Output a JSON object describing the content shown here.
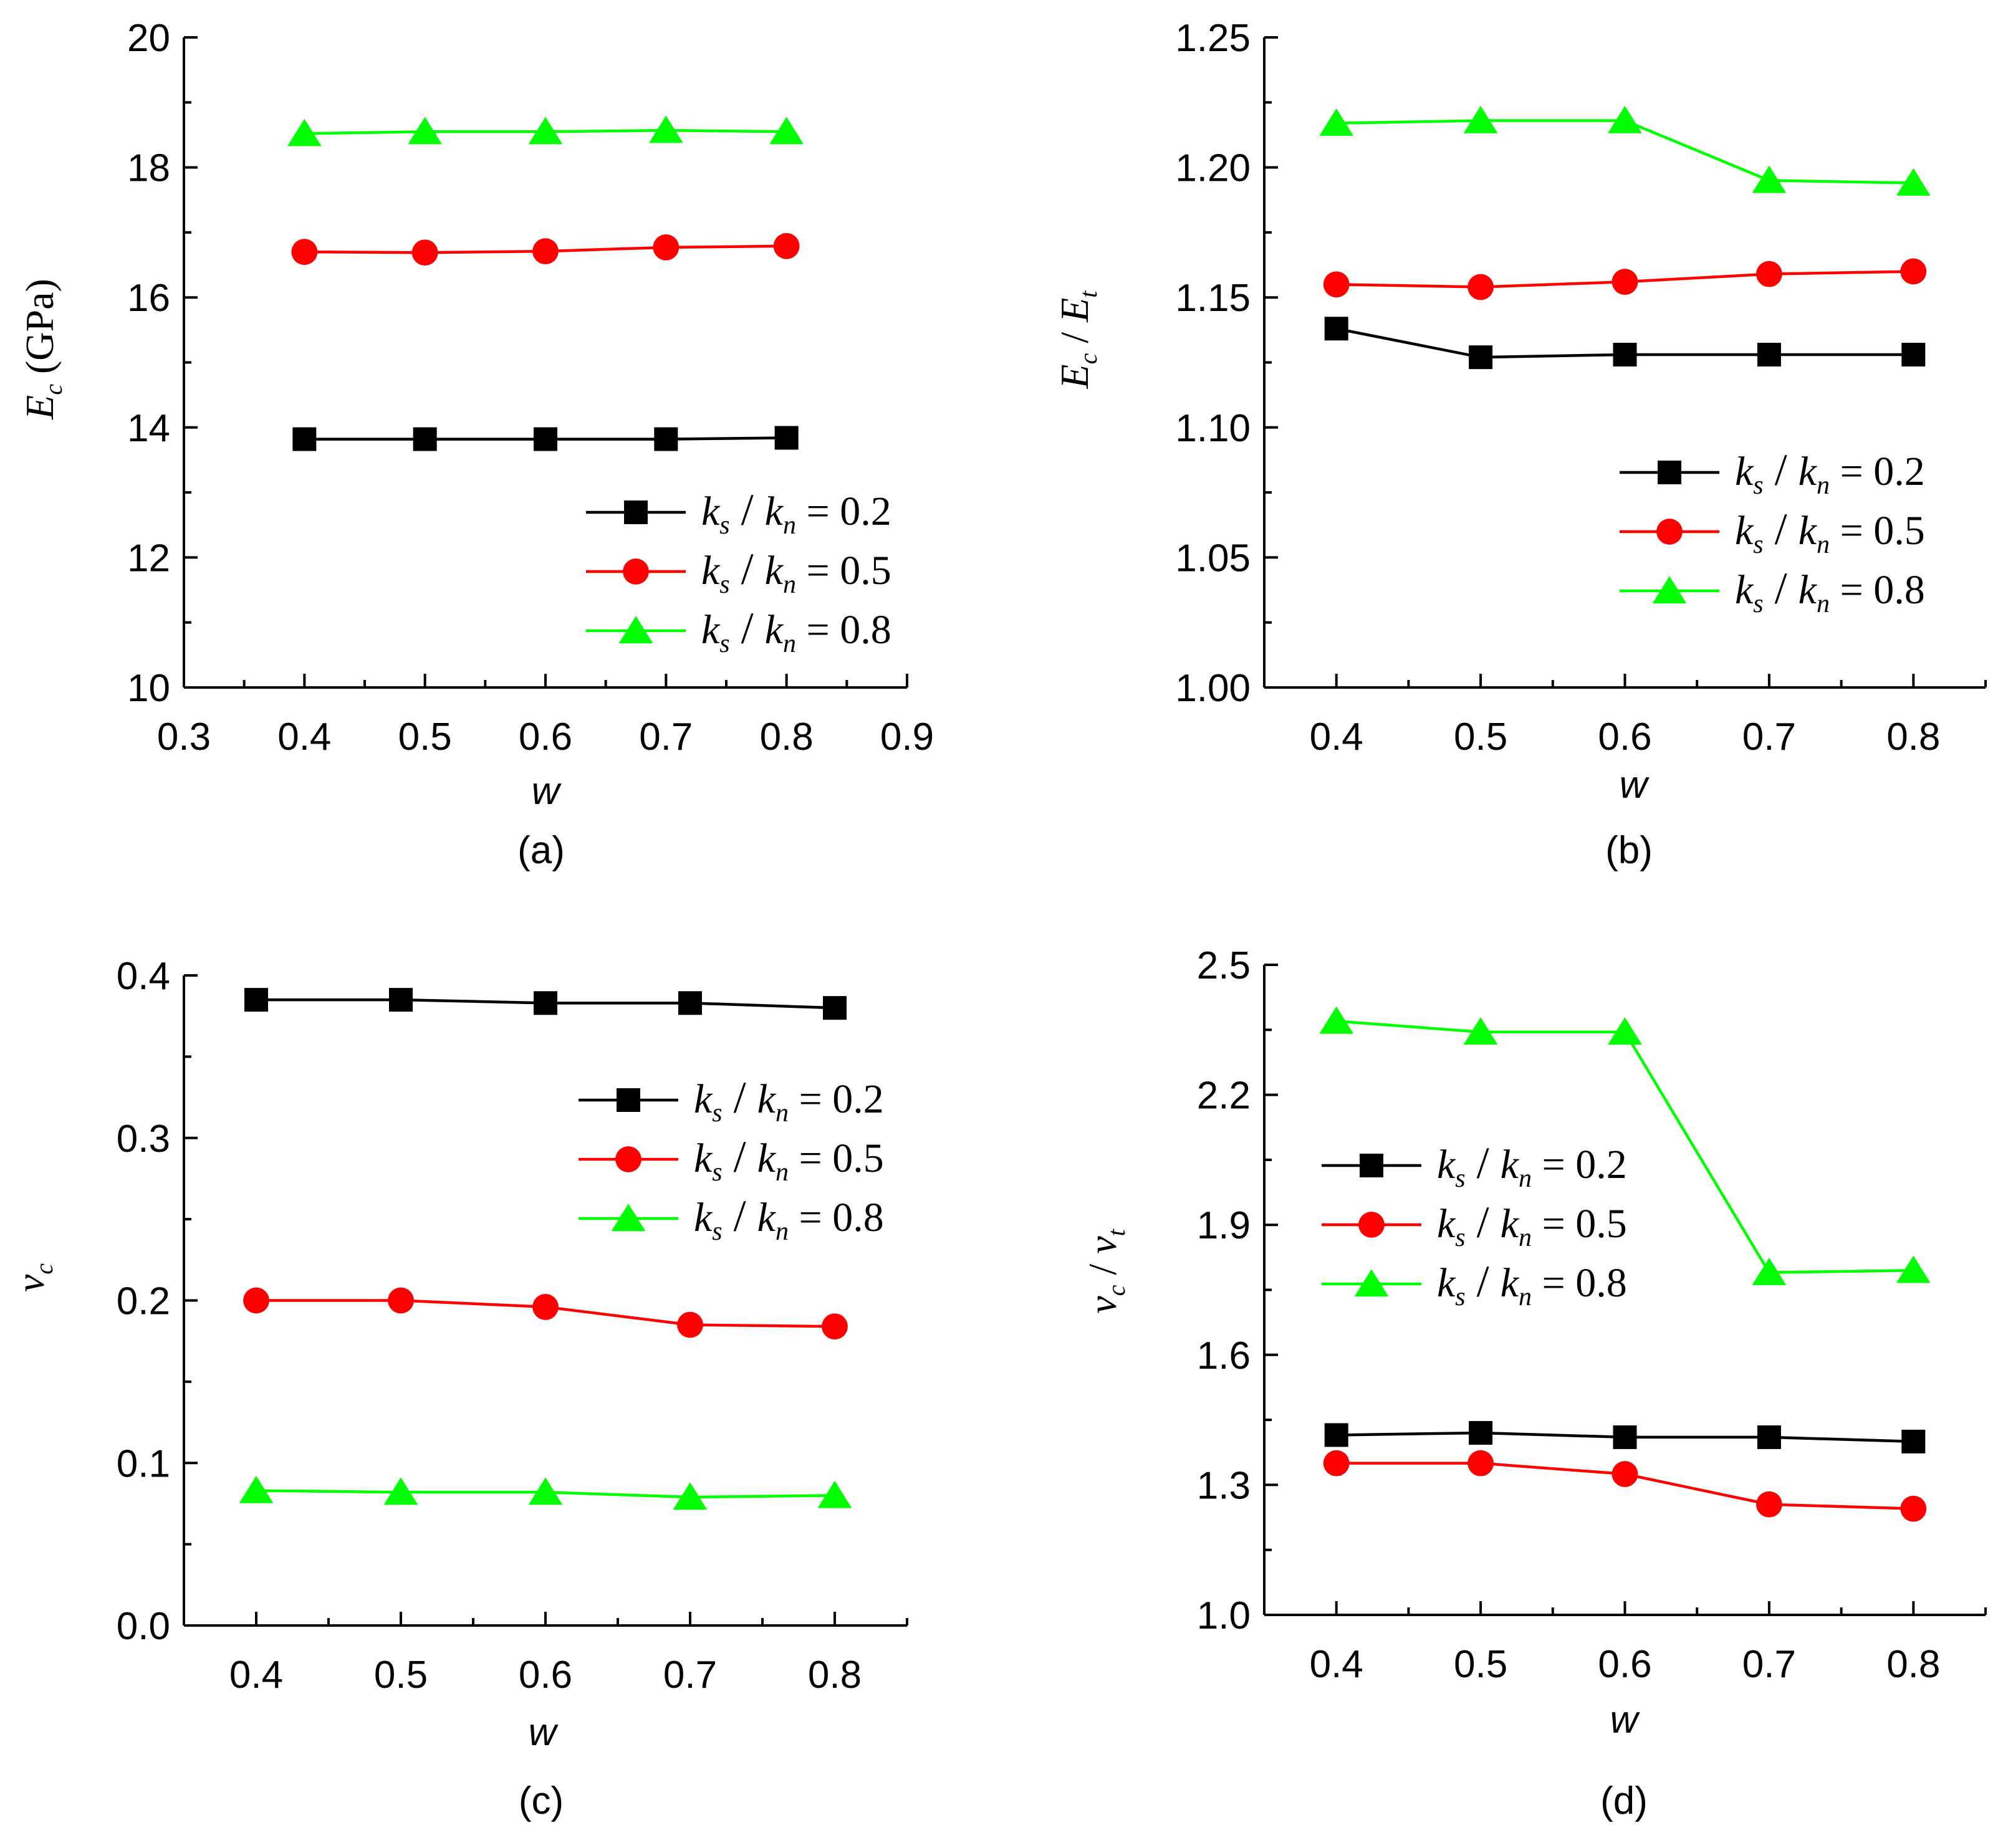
{
  "chart_data": [
    {
      "type": "line",
      "label": "(a)",
      "xlabel": "w",
      "ylabel_main": "E",
      "ylabel_sub": "c",
      "ylabel_unit": "(GPa)",
      "xlim": [
        0.3,
        0.9
      ],
      "ylim": [
        10,
        20
      ],
      "xticks": [
        0.3,
        0.4,
        0.5,
        0.6,
        0.7,
        0.8,
        0.9
      ],
      "xtick_labels": [
        "0.3",
        "0.4",
        "0.5",
        "0.6",
        "0.7",
        "0.8",
        "0.9"
      ],
      "yticks": [
        10,
        12,
        14,
        16,
        18,
        20
      ],
      "ytick_labels": [
        "10",
        "12",
        "14",
        "16",
        "18",
        "20"
      ],
      "x": [
        0.4,
        0.5,
        0.6,
        0.7,
        0.8
      ],
      "legend_position": "bottom-right",
      "series": [
        {
          "name": "k_s/k_n = 0.2",
          "ratio": "0.2",
          "marker": "square",
          "color": "#000000",
          "values": [
            13.82,
            13.82,
            13.82,
            13.82,
            13.84
          ]
        },
        {
          "name": "k_s/k_n = 0.5",
          "ratio": "0.5",
          "marker": "circle",
          "color": "#ff0000",
          "values": [
            16.7,
            16.69,
            16.71,
            16.77,
            16.79
          ]
        },
        {
          "name": "k_s/k_n = 0.8",
          "ratio": "0.8",
          "marker": "triangle",
          "color": "#00ff00",
          "values": [
            18.52,
            18.55,
            18.55,
            18.57,
            18.55
          ]
        }
      ]
    },
    {
      "type": "line",
      "label": "(b)",
      "xlabel": "w",
      "ylabel_num": "E",
      "ylabel_num_sub": "c",
      "ylabel_den": "E",
      "ylabel_den_sub": "t",
      "xlim": [
        0.35,
        0.85
      ],
      "ylim": [
        1.0,
        1.25
      ],
      "xticks": [
        0.4,
        0.5,
        0.6,
        0.7,
        0.8
      ],
      "xtick_labels": [
        "0.4",
        "0.5",
        "0.6",
        "0.7",
        "0.8"
      ],
      "yticks": [
        1.0,
        1.05,
        1.1,
        1.15,
        1.2,
        1.25
      ],
      "ytick_labels": [
        "1.00",
        "1.05",
        "1.10",
        "1.15",
        "1.20",
        "1.25"
      ],
      "x": [
        0.4,
        0.5,
        0.6,
        0.7,
        0.8
      ],
      "legend_position": "middle-right",
      "series": [
        {
          "name": "k_s/k_n = 0.2",
          "ratio": "0.2",
          "marker": "square",
          "color": "#000000",
          "values": [
            1.138,
            1.127,
            1.128,
            1.128,
            1.128
          ]
        },
        {
          "name": "k_s/k_n = 0.5",
          "ratio": "0.5",
          "marker": "circle",
          "color": "#ff0000",
          "values": [
            1.155,
            1.154,
            1.156,
            1.159,
            1.16
          ]
        },
        {
          "name": "k_s/k_n = 0.8",
          "ratio": "0.8",
          "marker": "triangle",
          "color": "#00ff00",
          "values": [
            1.217,
            1.218,
            1.218,
            1.195,
            1.194
          ]
        }
      ]
    },
    {
      "type": "line",
      "label": "(c)",
      "xlabel": "w",
      "ylabel_main": "v",
      "ylabel_sub": "c",
      "xlim": [
        0.35,
        0.85
      ],
      "ylim": [
        0.0,
        0.4
      ],
      "xticks": [
        0.4,
        0.5,
        0.6,
        0.7,
        0.8
      ],
      "xtick_labels": [
        "0.4",
        "0.5",
        "0.6",
        "0.7",
        "0.8"
      ],
      "yticks": [
        0.0,
        0.1,
        0.2,
        0.3,
        0.4
      ],
      "ytick_labels": [
        "0.0",
        "0.1",
        "0.2",
        "0.3",
        "0.4"
      ],
      "x": [
        0.4,
        0.5,
        0.6,
        0.7,
        0.8
      ],
      "legend_position": "top-right",
      "series": [
        {
          "name": "k_s/k_n = 0.2",
          "ratio": "0.2",
          "marker": "square",
          "color": "#000000",
          "values": [
            0.385,
            0.385,
            0.383,
            0.383,
            0.38
          ]
        },
        {
          "name": "k_s/k_n = 0.5",
          "ratio": "0.5",
          "marker": "circle",
          "color": "#ff0000",
          "values": [
            0.2,
            0.2,
            0.196,
            0.185,
            0.184
          ]
        },
        {
          "name": "k_s/k_n = 0.8",
          "ratio": "0.8",
          "marker": "triangle",
          "color": "#00ff00",
          "values": [
            0.083,
            0.082,
            0.082,
            0.079,
            0.08
          ]
        }
      ]
    },
    {
      "type": "line",
      "label": "(d)",
      "xlabel": "w",
      "ylabel_num": "v",
      "ylabel_num_sub": "c",
      "ylabel_den": "v",
      "ylabel_den_sub": "t",
      "xlim": [
        0.35,
        0.85
      ],
      "ylim": [
        1.0,
        2.5
      ],
      "xticks": [
        0.4,
        0.5,
        0.6,
        0.7,
        0.8
      ],
      "xtick_labels": [
        "0.4",
        "0.5",
        "0.6",
        "0.7",
        "0.8"
      ],
      "yticks": [
        1.0,
        1.3,
        1.6,
        1.9,
        2.2,
        2.5
      ],
      "ytick_labels": [
        "1.0",
        "1.3",
        "1.6",
        "1.9",
        "2.2",
        "2.5"
      ],
      "x": [
        0.4,
        0.5,
        0.6,
        0.7,
        0.8
      ],
      "legend_position": "middle-left",
      "series": [
        {
          "name": "k_s/k_n = 0.2",
          "ratio": "0.2",
          "marker": "square",
          "color": "#000000",
          "values": [
            1.415,
            1.42,
            1.41,
            1.41,
            1.4
          ]
        },
        {
          "name": "k_s/k_n = 0.5",
          "ratio": "0.5",
          "marker": "circle",
          "color": "#ff0000",
          "values": [
            1.35,
            1.35,
            1.325,
            1.255,
            1.245
          ]
        },
        {
          "name": "k_s/k_n = 0.8",
          "ratio": "0.8",
          "marker": "triangle",
          "color": "#00ff00",
          "values": [
            2.37,
            2.345,
            2.345,
            1.79,
            1.795
          ]
        }
      ]
    }
  ],
  "legend_symbols": {
    "k": "k",
    "s": "s",
    "n": "n",
    "slash": "/",
    "equals": "="
  }
}
